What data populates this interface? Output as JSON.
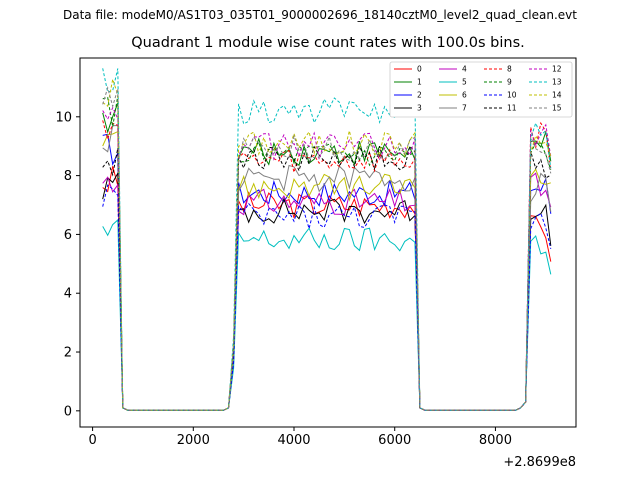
{
  "chart_data": {
    "type": "line",
    "suptitle": "Data file: modeM0/AS1T03_035T01_9000002696_18140cztM0_level2_quad_clean.evt",
    "title": "Quadrant 1 module wise count rates with 100.0s bins.",
    "xlabel": "",
    "ylabel": "",
    "x_offset_label": "+2.8699e8",
    "xlim": [
      -250,
      9600
    ],
    "ylim": [
      -0.55,
      12.0
    ],
    "xticks": [
      0,
      2000,
      4000,
      6000,
      8000
    ],
    "yticks": [
      0,
      2,
      4,
      6,
      8,
      10
    ],
    "legend_position": "top-right",
    "legend_columns": 4,
    "segments": [
      {
        "x_start": 200,
        "x_end": 600,
        "step": 100
      },
      {
        "x_start": 2700,
        "x_end": 6500,
        "step": 100
      },
      {
        "x_start": 8500,
        "x_end": 9100,
        "step": 100
      }
    ],
    "series": [
      {
        "name": "0",
        "color": "#ff0000",
        "dashed": false,
        "levels": [
          7.8,
          7.0,
          6.2
        ]
      },
      {
        "name": "1",
        "color": "#008000",
        "dashed": false,
        "levels": [
          10.0,
          8.8,
          9.0
        ]
      },
      {
        "name": "2",
        "color": "#0000ff",
        "dashed": false,
        "levels": [
          8.9,
          7.4,
          7.6
        ]
      },
      {
        "name": "3",
        "color": "#000000",
        "dashed": false,
        "levels": [
          7.6,
          6.8,
          6.9
        ]
      },
      {
        "name": "4",
        "color": "#bf00bf",
        "dashed": false,
        "levels": [
          7.8,
          7.1,
          7.6
        ]
      },
      {
        "name": "5",
        "color": "#00bfbf",
        "dashed": false,
        "levels": [
          6.0,
          5.8,
          5.7
        ]
      },
      {
        "name": "6",
        "color": "#bfbf00",
        "dashed": false,
        "levels": [
          9.6,
          7.6,
          8.2
        ]
      },
      {
        "name": "7",
        "color": "#808080",
        "dashed": false,
        "levels": [
          9.2,
          7.9,
          7.6
        ]
      },
      {
        "name": "8",
        "color": "#ff0000",
        "dashed": true,
        "levels": [
          9.8,
          8.5,
          9.4
        ]
      },
      {
        "name": "9",
        "color": "#008000",
        "dashed": true,
        "levels": [
          10.2,
          8.7,
          8.8
        ]
      },
      {
        "name": "10",
        "color": "#0000ff",
        "dashed": true,
        "levels": [
          7.4,
          6.6,
          6.5
        ]
      },
      {
        "name": "11",
        "color": "#000000",
        "dashed": true,
        "levels": [
          8.4,
          8.6,
          8.4
        ]
      },
      {
        "name": "12",
        "color": "#bf00bf",
        "dashed": true,
        "levels": [
          10.0,
          9.0,
          9.4
        ]
      },
      {
        "name": "13",
        "color": "#00bfbf",
        "dashed": true,
        "levels": [
          11.1,
          10.2,
          9.4
        ]
      },
      {
        "name": "14",
        "color": "#bfbf00",
        "dashed": true,
        "levels": [
          10.8,
          9.1,
          9.2
        ]
      },
      {
        "name": "15",
        "color": "#808080",
        "dashed": true,
        "levels": [
          10.4,
          8.9,
          9.0
        ]
      }
    ]
  }
}
